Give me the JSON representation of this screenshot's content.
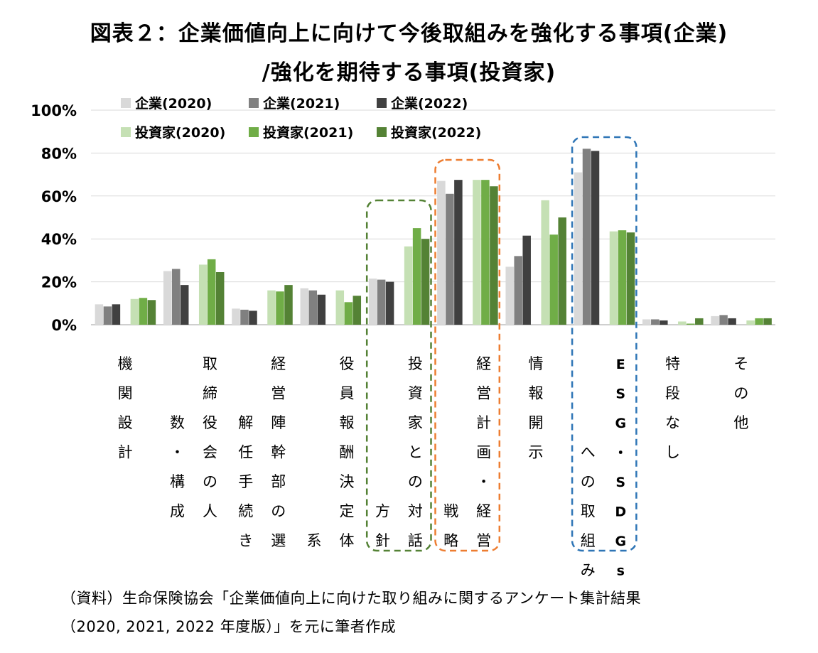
{
  "title_line1": "図表２：企業価値向上に向けて今後取組みを強化する事項(企業)",
  "title_line2": "/強化を期待する事項(投資家)",
  "source_line1": "（資料）生命保険協会「企業価値向上に向けた取り組みに関するアンケート集計結果",
  "source_line2": "（2020, 2021, 2022 年度版）」を元に筆者作成",
  "chart_data": {
    "type": "bar",
    "ylim": [
      0,
      100
    ],
    "y_ticks": [
      "0%",
      "20%",
      "40%",
      "60%",
      "80%",
      "100%"
    ],
    "grid": true,
    "legend_position": "top-left",
    "categories": [
      "機関設計",
      "取締役会の人数・構成",
      "経営陣幹部の選解任手続き",
      "役員報酬決定体系",
      "投資家との対話方針",
      "経営計画・経営戦略",
      "情報開示",
      "ESG・SDGsへの取組み",
      "特段なし",
      "その他"
    ],
    "category_label_columns": [
      [
        "機関設計"
      ],
      [
        "数・構成",
        "取締役会の人"
      ],
      [
        "解任手続き",
        "経営陣幹部の選"
      ],
      [
        "系",
        "役員報酬決定体"
      ],
      [
        "方針",
        "投資家との対話"
      ],
      [
        "戦略",
        "経営計画・経営"
      ],
      [
        "情報開示"
      ],
      [
        "への取組み",
        "ESG・SDGs"
      ],
      [
        "特段なし"
      ],
      [
        "その他"
      ]
    ],
    "series": [
      {
        "name": "企業(2020)",
        "color": "#d9d9d9",
        "values": [
          9.5,
          25,
          7.5,
          17,
          21.5,
          67,
          27,
          71,
          2.5,
          4
        ]
      },
      {
        "name": "企業(2021)",
        "color": "#808080",
        "values": [
          8.5,
          26,
          7,
          16,
          21,
          61,
          32,
          82,
          2.5,
          4.5
        ]
      },
      {
        "name": "企業(2022)",
        "color": "#404040",
        "values": [
          9.5,
          18.5,
          6.5,
          14,
          20,
          67.5,
          41.5,
          81,
          2,
          3
        ]
      },
      {
        "name": "投資家(2020)",
        "color": "#c5e0b4",
        "values": [
          12,
          28,
          16,
          16,
          36.5,
          67.5,
          58,
          43.5,
          1.5,
          2
        ]
      },
      {
        "name": "投資家(2021)",
        "color": "#70ad47",
        "values": [
          12.5,
          30.5,
          15.5,
          10.5,
          45,
          67.5,
          42,
          44,
          0.5,
          3
        ]
      },
      {
        "name": "投資家(2022)",
        "color": "#548235",
        "values": [
          11.5,
          24.5,
          18.5,
          13.5,
          40,
          64.5,
          50,
          43,
          3,
          3
        ]
      }
    ],
    "highlight_boxes": [
      {
        "category_index": 4,
        "color": "#548235"
      },
      {
        "category_index": 5,
        "color": "#ed7d31"
      },
      {
        "category_index": 7,
        "color": "#2e75b6"
      }
    ]
  }
}
